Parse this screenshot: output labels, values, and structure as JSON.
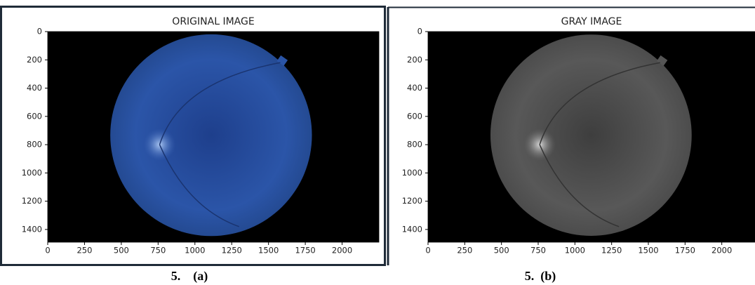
{
  "chart_data": [
    {
      "type": "image",
      "title": "ORIGINAL IMAGE",
      "caption": "5.    (a)",
      "xlim": [
        0,
        2250
      ],
      "ylim": [
        1490,
        0
      ],
      "xticks": [
        0,
        250,
        500,
        750,
        1000,
        1250,
        1500,
        1750,
        2000
      ],
      "yticks": [
        0,
        200,
        400,
        600,
        800,
        1000,
        1200,
        1400
      ]
    },
    {
      "type": "image",
      "title": "GRAY IMAGE",
      "caption": "5.  (b)",
      "xlim": [
        0,
        2250
      ],
      "ylim": [
        1490,
        0
      ],
      "xticks": [
        0,
        250,
        500,
        750,
        1000,
        1250,
        1500,
        1750,
        2000
      ],
      "yticks": [
        0,
        200,
        400,
        600,
        800,
        1000,
        1200,
        1400
      ]
    }
  ]
}
